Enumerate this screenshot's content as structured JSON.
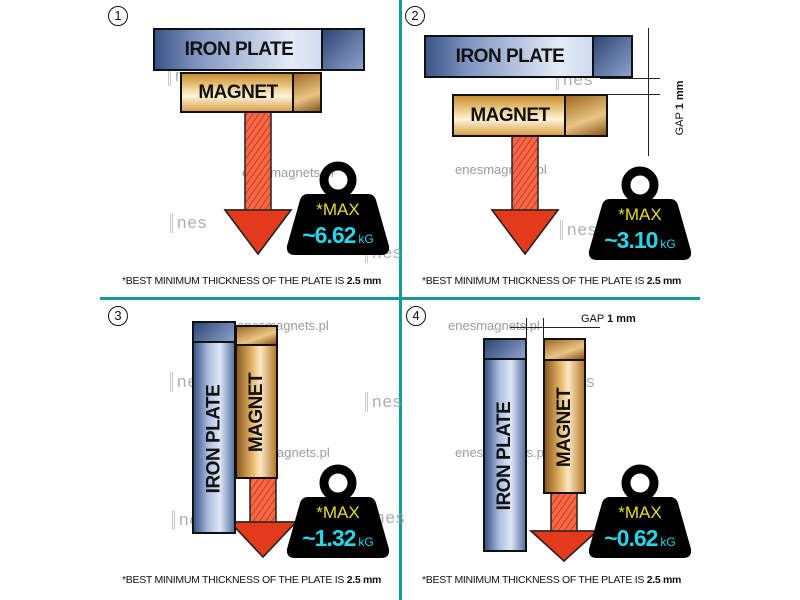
{
  "colors": {
    "divider": "#159a96",
    "max_text": "#e8d93a",
    "value_text": "#2ad4e8",
    "arrow": "#e23a1a",
    "weight": "#000000"
  },
  "watermark": {
    "site": "enesmagnets.pl",
    "logo": "nes"
  },
  "footnote": {
    "prefix": "*BEST MINIMUM THICKNESS OF THE PLATE IS ",
    "value": "2.5 mm"
  },
  "panels": [
    {
      "number": "1",
      "plate": "IRON PLATE",
      "magnet": "MAGNET",
      "max": "*MAX",
      "value": "~6.62",
      "unit": "kG"
    },
    {
      "number": "2",
      "plate": "IRON PLATE",
      "magnet": "MAGNET",
      "max": "*MAX",
      "value": "~3.10",
      "unit": "kG",
      "gap_label": "GAP",
      "gap_value": "1 mm"
    },
    {
      "number": "3",
      "plate": "IRON  PLATE",
      "magnet": "MAGNET",
      "max": "*MAX",
      "value": "~1.32",
      "unit": "kG"
    },
    {
      "number": "4",
      "plate": "IRON PLATE",
      "magnet": "MAGNET",
      "max": "*MAX",
      "value": "~0.62",
      "unit": "kG",
      "gap_label": "GAP",
      "gap_value": "1 mm"
    }
  ]
}
